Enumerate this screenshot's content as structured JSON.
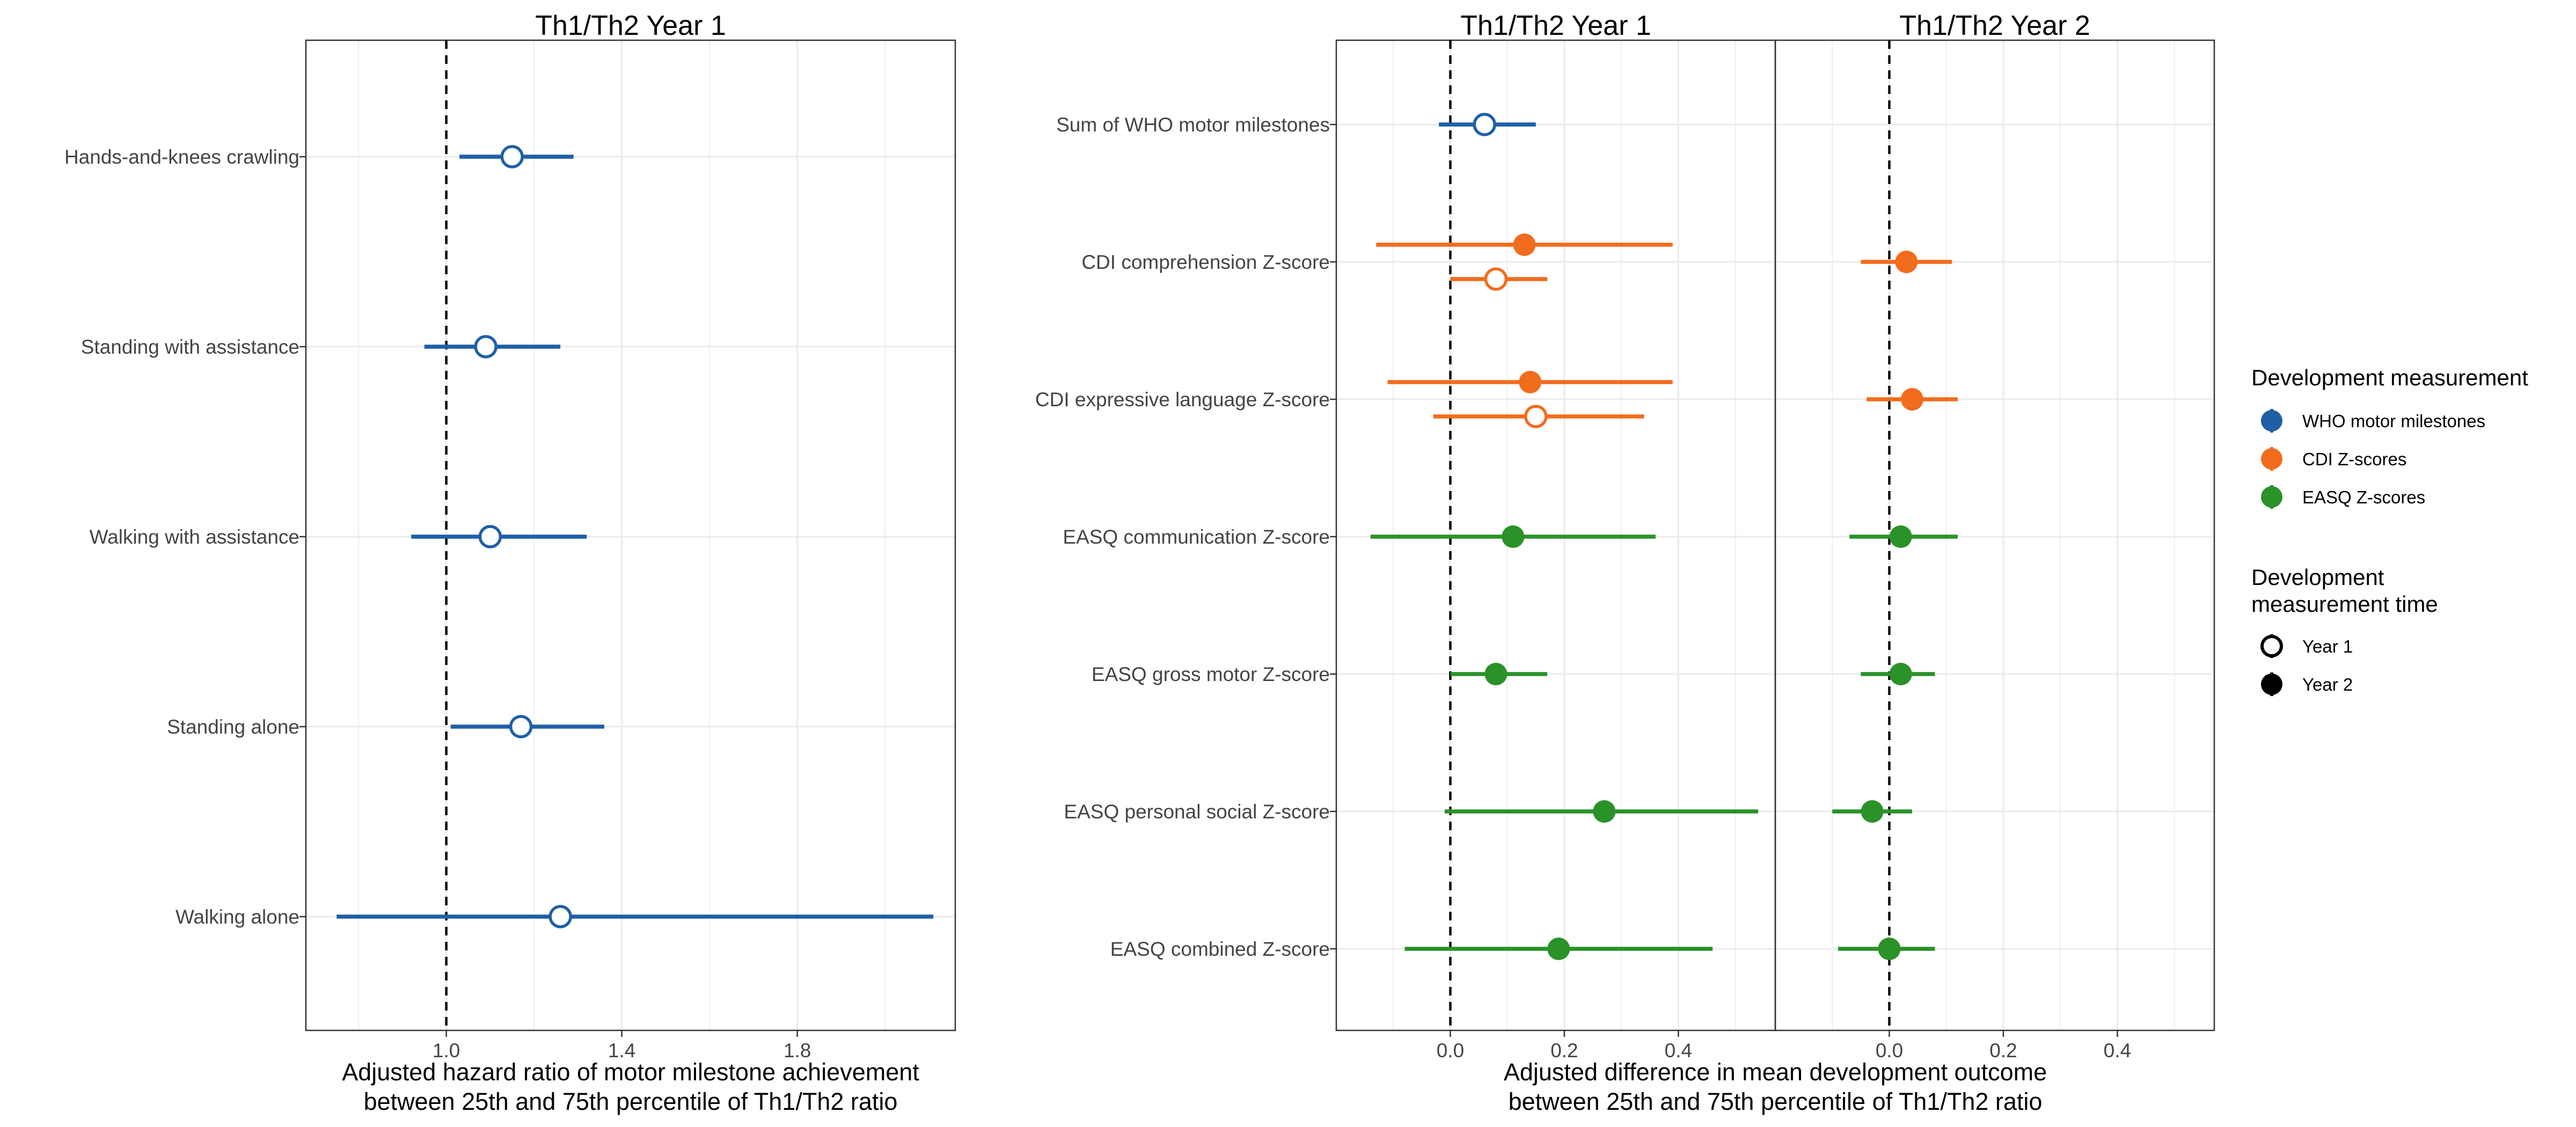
{
  "colors": {
    "WHO motor milestones": "#1f5fa6",
    "CDI Z-scores": "#f26c1d",
    "EASQ Z-scores": "#2a9228",
    "grid": "#ebebeb",
    "panel_border": "#333333"
  },
  "legend": {
    "placement": "right",
    "title_measure": "Development measurement",
    "measures": [
      "WHO motor milestones",
      "CDI Z-scores",
      "EASQ Z-scores"
    ],
    "title_time_line1": "Development",
    "title_time_line2": "measurement time",
    "times": [
      {
        "label": "Year 1",
        "shape": "open circle"
      },
      {
        "label": "Year 2",
        "shape": "filled circle"
      }
    ]
  },
  "chart_data": [
    {
      "type": "forest",
      "title": "Th1/Th2 Year 1",
      "xlabel_line1": "Adjusted hazard ratio of motor milestone achievement",
      "xlabel_line2": "between 25th and 75th percentile of Th1/Th2 ratio",
      "xlim": [
        0.68,
        2.16
      ],
      "xticks": [
        "1.0",
        "1.4",
        "1.8"
      ],
      "xtick_values": [
        1.0,
        1.4,
        1.8
      ],
      "reference_line": 1.0,
      "grid": true,
      "categories": [
        "Hands-and-knees crawling",
        "Standing with assistance",
        "Walking with assistance",
        "Standing alone",
        "Walking alone"
      ],
      "points": [
        {
          "category": "Hands-and-knees crawling",
          "measure": "WHO motor milestones",
          "time": "Year 1",
          "estimate": 1.15,
          "lower": 1.03,
          "upper": 1.29
        },
        {
          "category": "Standing with assistance",
          "measure": "WHO motor milestones",
          "time": "Year 1",
          "estimate": 1.09,
          "lower": 0.95,
          "upper": 1.26
        },
        {
          "category": "Walking with assistance",
          "measure": "WHO motor milestones",
          "time": "Year 1",
          "estimate": 1.1,
          "lower": 0.92,
          "upper": 1.32
        },
        {
          "category": "Standing alone",
          "measure": "WHO motor milestones",
          "time": "Year 1",
          "estimate": 1.17,
          "lower": 1.01,
          "upper": 1.36
        },
        {
          "category": "Walking alone",
          "measure": "WHO motor milestones",
          "time": "Year 1",
          "estimate": 1.26,
          "lower": 0.75,
          "upper": 2.11
        }
      ]
    },
    {
      "type": "forest",
      "titles": [
        "Th1/Th2 Year 1",
        "Th1/Th2 Year 2"
      ],
      "xlabel_line1": "Adjusted difference in mean development outcome",
      "xlabel_line2": "between 25th and 75th percentile of Th1/Th2 ratio",
      "xlim": [
        -0.2,
        0.57
      ],
      "xticks": [
        "0.0",
        "0.2",
        "0.4"
      ],
      "xtick_values": [
        0.0,
        0.2,
        0.4
      ],
      "reference_line": 0.0,
      "grid": true,
      "categories": [
        "Sum of WHO motor milestones",
        "CDI comprehension Z-score",
        "CDI expressive language Z-score",
        "EASQ communication Z-score",
        "EASQ gross motor Z-score",
        "EASQ personal social Z-score",
        "EASQ combined Z-score"
      ],
      "points": [
        {
          "panel": "Th1/Th2 Year 1",
          "category": "Sum of WHO motor milestones",
          "measure": "WHO motor milestones",
          "time": "Year 1",
          "estimate": 0.06,
          "lower": -0.02,
          "upper": 0.15
        },
        {
          "panel": "Th1/Th2 Year 1",
          "category": "CDI comprehension Z-score",
          "measure": "CDI Z-scores",
          "time": "Year 2",
          "estimate": 0.13,
          "lower": -0.13,
          "upper": 0.39
        },
        {
          "panel": "Th1/Th2 Year 1",
          "category": "CDI comprehension Z-score",
          "measure": "CDI Z-scores",
          "time": "Year 1",
          "estimate": 0.08,
          "lower": 0.0,
          "upper": 0.17
        },
        {
          "panel": "Th1/Th2 Year 1",
          "category": "CDI expressive language Z-score",
          "measure": "CDI Z-scores",
          "time": "Year 2",
          "estimate": 0.14,
          "lower": -0.11,
          "upper": 0.39
        },
        {
          "panel": "Th1/Th2 Year 1",
          "category": "CDI expressive language Z-score",
          "measure": "CDI Z-scores",
          "time": "Year 1",
          "estimate": 0.15,
          "lower": -0.03,
          "upper": 0.34
        },
        {
          "panel": "Th1/Th2 Year 1",
          "category": "EASQ communication Z-score",
          "measure": "EASQ Z-scores",
          "time": "Year 2",
          "estimate": 0.11,
          "lower": -0.14,
          "upper": 0.36
        },
        {
          "panel": "Th1/Th2 Year 1",
          "category": "EASQ gross motor Z-score",
          "measure": "EASQ Z-scores",
          "time": "Year 2",
          "estimate": 0.08,
          "lower": 0.0,
          "upper": 0.17
        },
        {
          "panel": "Th1/Th2 Year 1",
          "category": "EASQ personal social Z-score",
          "measure": "EASQ Z-scores",
          "time": "Year 2",
          "estimate": 0.27,
          "lower": -0.01,
          "upper": 0.54
        },
        {
          "panel": "Th1/Th2 Year 1",
          "category": "EASQ combined Z-score",
          "measure": "EASQ Z-scores",
          "time": "Year 2",
          "estimate": 0.19,
          "lower": -0.08,
          "upper": 0.46
        },
        {
          "panel": "Th1/Th2 Year 2",
          "category": "CDI comprehension Z-score",
          "measure": "CDI Z-scores",
          "time": "Year 2",
          "estimate": 0.03,
          "lower": -0.05,
          "upper": 0.11
        },
        {
          "panel": "Th1/Th2 Year 2",
          "category": "CDI expressive language Z-score",
          "measure": "CDI Z-scores",
          "time": "Year 2",
          "estimate": 0.04,
          "lower": -0.04,
          "upper": 0.12
        },
        {
          "panel": "Th1/Th2 Year 2",
          "category": "EASQ communication Z-score",
          "measure": "EASQ Z-scores",
          "time": "Year 2",
          "estimate": 0.02,
          "lower": -0.07,
          "upper": 0.12
        },
        {
          "panel": "Th1/Th2 Year 2",
          "category": "EASQ gross motor Z-score",
          "measure": "EASQ Z-scores",
          "time": "Year 2",
          "estimate": 0.02,
          "lower": -0.05,
          "upper": 0.08
        },
        {
          "panel": "Th1/Th2 Year 2",
          "category": "EASQ personal social Z-score",
          "measure": "EASQ Z-scores",
          "time": "Year 2",
          "estimate": -0.03,
          "lower": -0.1,
          "upper": 0.04
        },
        {
          "panel": "Th1/Th2 Year 2",
          "category": "EASQ combined Z-score",
          "measure": "EASQ Z-scores",
          "time": "Year 2",
          "estimate": 0.0,
          "lower": -0.09,
          "upper": 0.08
        }
      ]
    }
  ]
}
